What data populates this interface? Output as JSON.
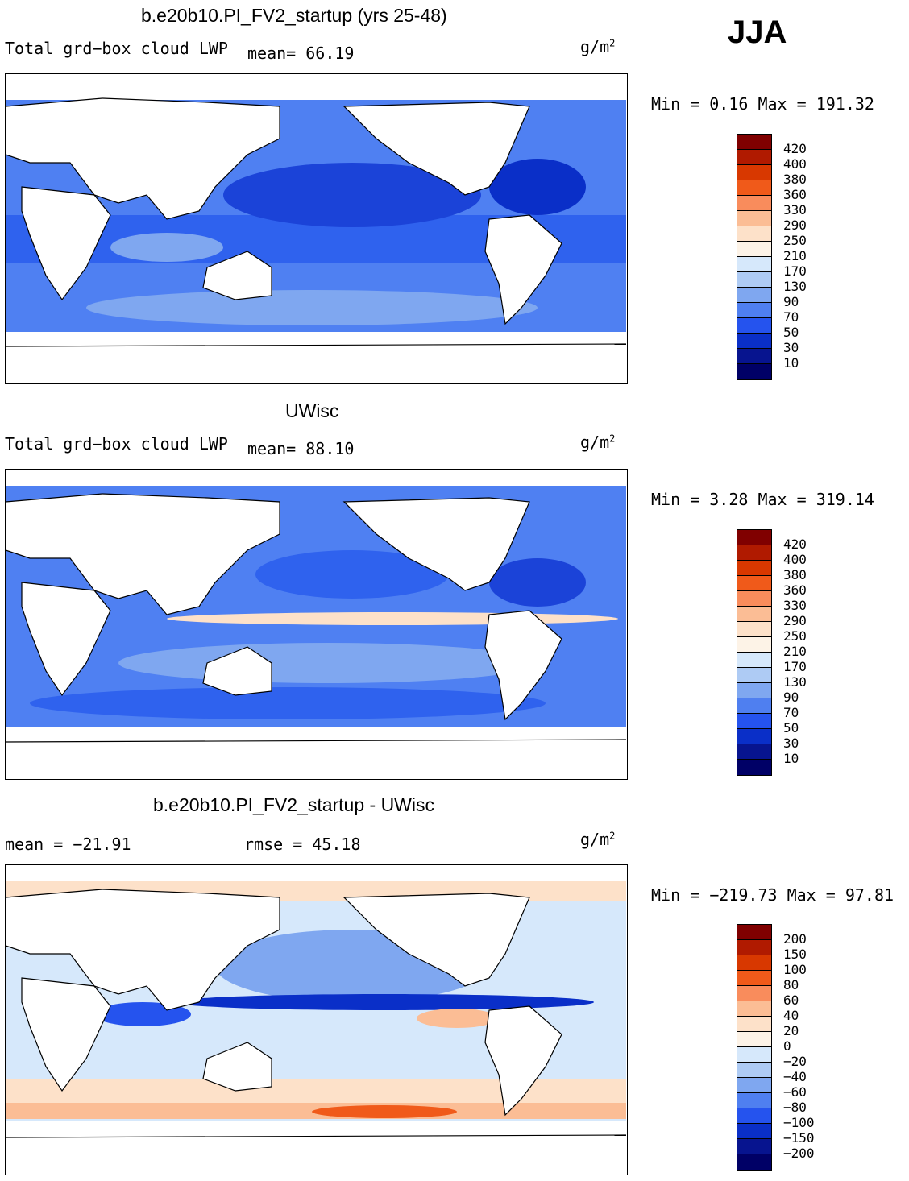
{
  "season": "JJA",
  "panels": [
    {
      "title": "b.e20b10.PI_FV2_startup (yrs 25-48)",
      "label_left": "Total grd−box cloud LWP",
      "label_mid": "mean=  66.19",
      "unit": "g/m",
      "unit_sup": "2",
      "stats": "Min =    0.16 Max = 191.32",
      "levels": [
        "420",
        "400",
        "380",
        "360",
        "330",
        "290",
        "250",
        "210",
        "170",
        "130",
        "90",
        "70",
        "50",
        "30",
        "10"
      ]
    },
    {
      "title": "UWisc",
      "label_left": "Total grd−box cloud LWP",
      "label_mid": "mean=  88.10",
      "unit": "g/m",
      "unit_sup": "2",
      "stats": "Min =    3.28 Max = 319.14",
      "levels": [
        "420",
        "400",
        "380",
        "360",
        "330",
        "290",
        "250",
        "210",
        "170",
        "130",
        "90",
        "70",
        "50",
        "30",
        "10"
      ]
    },
    {
      "title": "b.e20b10.PI_FV2_startup - UWisc",
      "label_left": "mean = −21.91",
      "label_mid": "rmse =  45.18",
      "unit": "g/m",
      "unit_sup": "2",
      "stats": "Min = −219.73 Max =  97.81",
      "levels": [
        "200",
        "150",
        "100",
        "80",
        "60",
        "40",
        "20",
        "0",
        "−20",
        "−40",
        "−60",
        "−80",
        "−100",
        "−150",
        "−200"
      ]
    }
  ],
  "colors": {
    "scale": [
      "#800000",
      "#b01a00",
      "#d83800",
      "#f05a1a",
      "#f98c5c",
      "#fbbd95",
      "#fde1c9",
      "#fdf3e7",
      "#d6e8fb",
      "#aecbf4",
      "#7fa7f0",
      "#4f7ff0",
      "#2553ee",
      "#0a2fc8",
      "#07148f",
      "#000066"
    ],
    "land": "#ffffff",
    "ocean_a": [
      "#2f62ee",
      "#4f80f2",
      "#7fa7f0",
      "#aecbf4",
      "#1b43d8"
    ],
    "ocean_b": [
      "#2f62ee",
      "#4f80f2",
      "#7fa7f0",
      "#aecbf4",
      "#1b43d8"
    ],
    "ocean_c": [
      "#d6e8fb",
      "#aecbf4",
      "#fde1c9",
      "#fbbd95",
      "#7fa7f0"
    ]
  },
  "chart_data": [
    {
      "type": "heatmap",
      "title": "b.e20b10.PI_FV2_startup (yrs 25-48)",
      "variable": "Total grd-box cloud LWP",
      "units": "g/m^2",
      "mean": 66.19,
      "min": 0.16,
      "max": 191.32,
      "contour_levels": [
        10,
        30,
        50,
        70,
        90,
        130,
        170,
        210,
        250,
        290,
        330,
        360,
        380,
        400,
        420
      ]
    },
    {
      "type": "heatmap",
      "title": "UWisc",
      "variable": "Total grd-box cloud LWP",
      "units": "g/m^2",
      "mean": 88.1,
      "min": 3.28,
      "max": 319.14,
      "contour_levels": [
        10,
        30,
        50,
        70,
        90,
        130,
        170,
        210,
        250,
        290,
        330,
        360,
        380,
        400,
        420
      ]
    },
    {
      "type": "heatmap",
      "title": "b.e20b10.PI_FV2_startup - UWisc",
      "units": "g/m^2",
      "mean": -21.91,
      "rmse": 45.18,
      "min": -219.73,
      "max": 97.81,
      "contour_levels": [
        -200,
        -150,
        -100,
        -80,
        -60,
        -40,
        -20,
        0,
        20,
        40,
        60,
        80,
        100,
        150,
        200
      ]
    }
  ]
}
